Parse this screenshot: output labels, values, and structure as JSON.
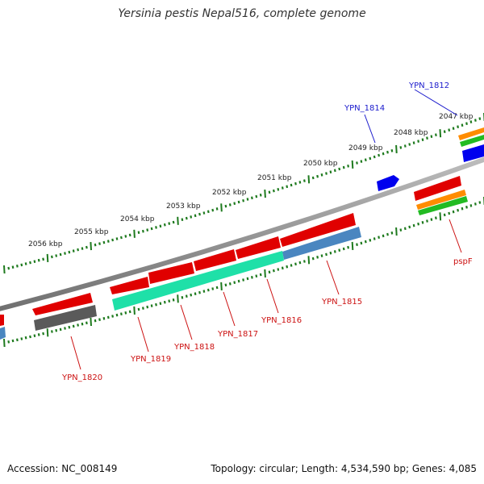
{
  "title": "Yersinia pestis Nepal516, complete genome",
  "footer": {
    "accession": "Accession: NC_008149",
    "summary": "Topology: circular; Length: 4,534,590 bp; Genes: 4,085"
  },
  "tick_labels": [
    "2047 kbp",
    "2048 kbp",
    "2049 kbp",
    "2050 kbp",
    "2051 kbp",
    "2052 kbp",
    "2053 kbp",
    "2054 kbp",
    "2055 kbp",
    "2056 kbp"
  ],
  "gene_labels": [
    "YPN_1812",
    "YPN_1814",
    "YPN_1815",
    "YPN_1816",
    "YPN_1817",
    "YPN_1818",
    "YPN_1819",
    "YPN_1820",
    "pspF"
  ],
  "colors": {
    "outer_label": "#1a1acc",
    "inner_label": "#cc1111",
    "backbone": "#8c8c8c",
    "tick": "#1e7a1e",
    "cds_red": "#e00000",
    "cds_blue": "#0000ee",
    "trna_teal": "#1fe0a8",
    "misc_steel": "#4a86c0",
    "pseudo_gray": "#5a5a5a",
    "orange": "#ff8c00",
    "green": "#22bb22"
  }
}
